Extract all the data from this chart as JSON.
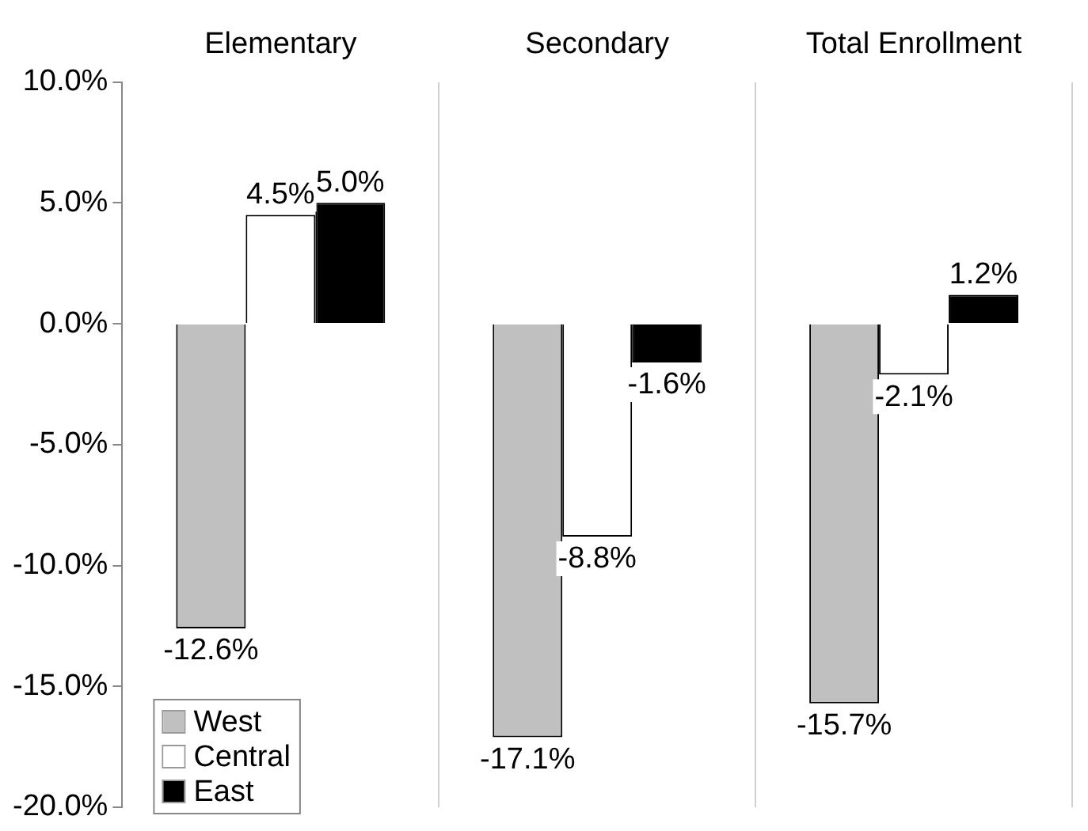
{
  "chart_data": {
    "type": "bar",
    "categories": [
      "Elementary",
      "Secondary",
      "Total Enrollment"
    ],
    "series": [
      {
        "name": "West",
        "color": "#c0c0c0",
        "values": [
          -12.6,
          -17.1,
          -15.7
        ],
        "value_labels": [
          "-12.6%",
          "-17.1%",
          "-15.7%"
        ]
      },
      {
        "name": "Central",
        "color": "#ffffff",
        "values": [
          4.5,
          -8.8,
          -2.1
        ],
        "value_labels": [
          "4.5%",
          "-8.8%",
          "-2.1%"
        ]
      },
      {
        "name": "East",
        "color": "#000000",
        "values": [
          5.0,
          -1.6,
          1.2
        ],
        "value_labels": [
          "5.0%",
          "-1.6%",
          "1.2%"
        ]
      }
    ],
    "ylim": [
      -20,
      10
    ],
    "yticks": [
      {
        "value": -20,
        "label": "-20.0%"
      },
      {
        "value": -15,
        "label": "-15.0%"
      },
      {
        "value": -10,
        "label": "-10.0%"
      },
      {
        "value": -5,
        "label": "-5.0%"
      },
      {
        "value": 0,
        "label": "0.0%"
      },
      {
        "value": 5,
        "label": "5.0%"
      },
      {
        "value": 10,
        "label": "10.0%"
      }
    ],
    "grid": "x",
    "legend": "bottom left"
  }
}
